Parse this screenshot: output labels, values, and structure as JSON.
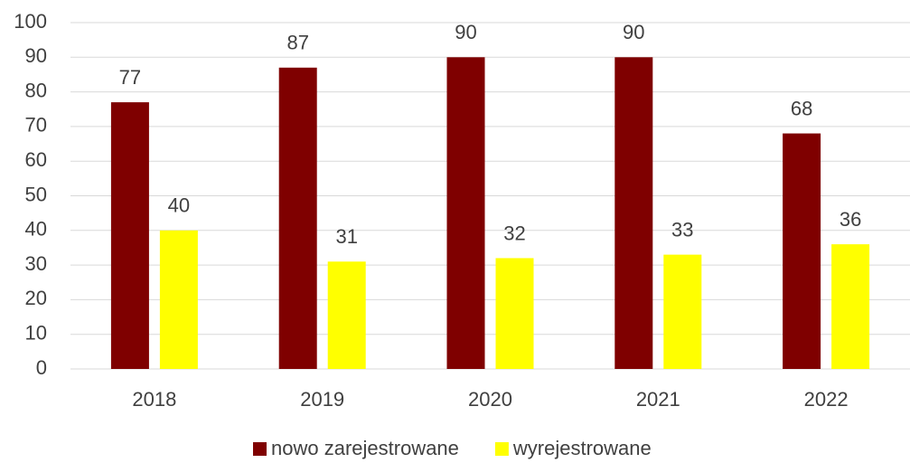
{
  "chart_data": {
    "type": "bar",
    "categories": [
      "2018",
      "2019",
      "2020",
      "2021",
      "2022"
    ],
    "series": [
      {
        "name": "nowo zarejestrowane",
        "color": "#7f0000",
        "values": [
          77,
          87,
          90,
          90,
          68
        ]
      },
      {
        "name": "wyrejestrowane",
        "color": "#ffff00",
        "values": [
          40,
          31,
          32,
          33,
          36
        ]
      }
    ],
    "ylim": [
      0,
      100
    ],
    "yticks": [
      0,
      10,
      20,
      30,
      40,
      50,
      60,
      70,
      80,
      90,
      100
    ],
    "grid": true,
    "legend": "bottom"
  }
}
